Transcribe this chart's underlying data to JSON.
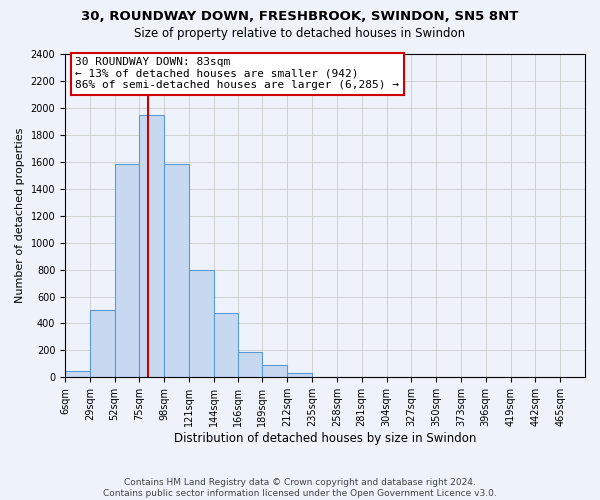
{
  "title_line1": "30, ROUNDWAY DOWN, FRESHBROOK, SWINDON, SN5 8NT",
  "title_line2": "Size of property relative to detached houses in Swindon",
  "xlabel": "Distribution of detached houses by size in Swindon",
  "ylabel": "Number of detached properties",
  "bin_labels": [
    "6sqm",
    "29sqm",
    "52sqm",
    "75sqm",
    "98sqm",
    "121sqm",
    "144sqm",
    "166sqm",
    "189sqm",
    "212sqm",
    "235sqm",
    "258sqm",
    "281sqm",
    "304sqm",
    "327sqm",
    "350sqm",
    "373sqm",
    "396sqm",
    "419sqm",
    "442sqm",
    "465sqm"
  ],
  "bin_edges": [
    6,
    29,
    52,
    75,
    98,
    121,
    144,
    166,
    189,
    212,
    235,
    258,
    281,
    304,
    327,
    350,
    373,
    396,
    419,
    442,
    465
  ],
  "bar_heights": [
    50,
    500,
    1580,
    1950,
    1580,
    800,
    480,
    190,
    90,
    30,
    0,
    0,
    0,
    0,
    0,
    0,
    0,
    0,
    0,
    0
  ],
  "bar_color": "#c7d9f0",
  "bar_edge_color": "#5b9bd5",
  "vline_x": 83,
  "vline_color": "#cc0000",
  "annotation_text": "30 ROUNDWAY DOWN: 83sqm\n← 13% of detached houses are smaller (942)\n86% of semi-detached houses are larger (6,285) →",
  "annotation_box_color": "white",
  "annotation_box_edge_color": "#cc0000",
  "ylim": [
    0,
    2400
  ],
  "yticks": [
    0,
    200,
    400,
    600,
    800,
    1000,
    1200,
    1400,
    1600,
    1800,
    2000,
    2200,
    2400
  ],
  "footer_line1": "Contains HM Land Registry data © Crown copyright and database right 2024.",
  "footer_line2": "Contains public sector information licensed under the Open Government Licence v3.0.",
  "grid_color": "#cccccc",
  "bg_color": "#eef2fa",
  "title_fontsize": 9.5,
  "subtitle_fontsize": 8.5,
  "tick_fontsize": 7,
  "ylabel_fontsize": 8,
  "xlabel_fontsize": 8.5,
  "ann_fontsize": 8,
  "footer_fontsize": 6.5
}
